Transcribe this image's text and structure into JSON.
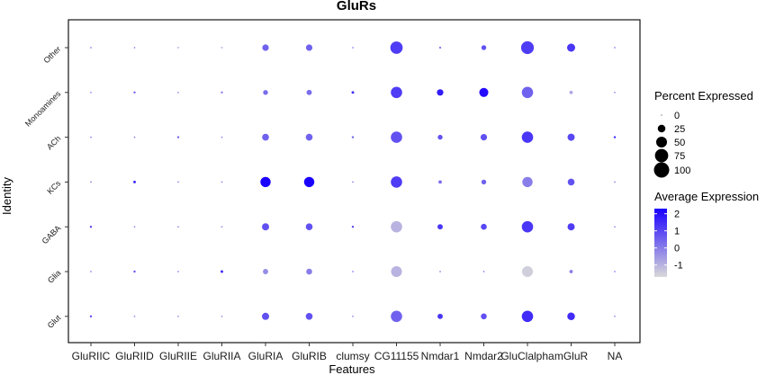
{
  "chart_data": {
    "type": "dotplot",
    "title": "GluRs",
    "xlabel": "Features",
    "ylabel": "Identity",
    "features": [
      "GluRIIC",
      "GluRIID",
      "GluRIIE",
      "GluRIIA",
      "GluRIA",
      "GluRIB",
      "clumsy",
      "CG11155",
      "Nmdar1",
      "Nmdar2",
      "GluClalpha",
      "mGluR",
      "NA"
    ],
    "identities": [
      "Other",
      "Monoamines",
      "ACh",
      "KCs",
      "GABA",
      "Glia",
      "Glut"
    ],
    "legend_size": {
      "title": "Percent Expressed",
      "breaks": [
        0,
        25,
        50,
        75,
        100
      ],
      "labels": [
        "0",
        "25",
        "50",
        "75",
        "100"
      ],
      "range_observed": [
        0,
        100
      ]
    },
    "legend_color": {
      "title": "Average Expression",
      "breaks": [
        2,
        1,
        0,
        -1
      ],
      "labels": [
        "2",
        "1",
        "0",
        "-1"
      ],
      "range": [
        -1.7,
        2.3
      ],
      "low_color": "#d9d9d9",
      "high_color": "#1a00ff"
    },
    "points": {
      "Other": {
        "pct": [
          1,
          1,
          1,
          1,
          18,
          18,
          1,
          65,
          2,
          10,
          70,
          28,
          1
        ],
        "avg": [
          0.0,
          0.0,
          -0.5,
          -0.5,
          0.5,
          0.5,
          0.0,
          1.2,
          0.0,
          0.8,
          1.2,
          1.3,
          0.0
        ]
      },
      "Monoamines": {
        "pct": [
          1,
          2,
          1,
          2,
          10,
          12,
          3,
          55,
          18,
          35,
          55,
          5,
          1
        ],
        "avg": [
          0.0,
          0.5,
          0.0,
          0.0,
          0.3,
          0.3,
          1.5,
          1.2,
          1.8,
          2.1,
          0.5,
          -0.8,
          0.0
        ]
      },
      "ACh": {
        "pct": [
          1,
          1,
          2,
          1,
          20,
          20,
          2,
          55,
          10,
          18,
          55,
          22,
          2
        ],
        "avg": [
          0.0,
          0.0,
          0.5,
          0.0,
          0.5,
          0.5,
          0.5,
          0.8,
          0.8,
          0.8,
          1.3,
          1.0,
          1.5
        ]
      },
      "KCs": {
        "pct": [
          1,
          3,
          1,
          1,
          45,
          45,
          1,
          55,
          5,
          10,
          45,
          20,
          1
        ],
        "avg": [
          0.0,
          1.5,
          0.0,
          0.0,
          2.3,
          2.3,
          0.0,
          1.2,
          0.3,
          0.5,
          0.0,
          0.8,
          0.0
        ]
      },
      "GABA": {
        "pct": [
          2,
          1,
          1,
          1,
          22,
          20,
          2,
          55,
          12,
          15,
          55,
          22,
          1
        ],
        "avg": [
          1.0,
          0.0,
          0.0,
          0.0,
          0.8,
          0.8,
          1.0,
          -1.0,
          1.3,
          1.0,
          1.3,
          1.2,
          0.0
        ]
      },
      "Glia": {
        "pct": [
          1,
          2,
          1,
          3,
          12,
          15,
          1,
          50,
          1,
          1,
          50,
          5,
          1
        ],
        "avg": [
          0.0,
          0.8,
          0.0,
          1.5,
          -0.3,
          0.0,
          0.0,
          -1.0,
          0.0,
          0.0,
          -1.5,
          0.0,
          0.0
        ]
      },
      "Glut": {
        "pct": [
          2,
          1,
          1,
          1,
          22,
          20,
          1,
          55,
          12,
          15,
          55,
          25,
          1
        ],
        "avg": [
          1.0,
          0.0,
          0.0,
          0.0,
          0.8,
          0.8,
          0.0,
          0.5,
          1.3,
          0.8,
          1.5,
          1.5,
          0.0
        ]
      }
    },
    "grid": false,
    "legend_placement": "right"
  }
}
